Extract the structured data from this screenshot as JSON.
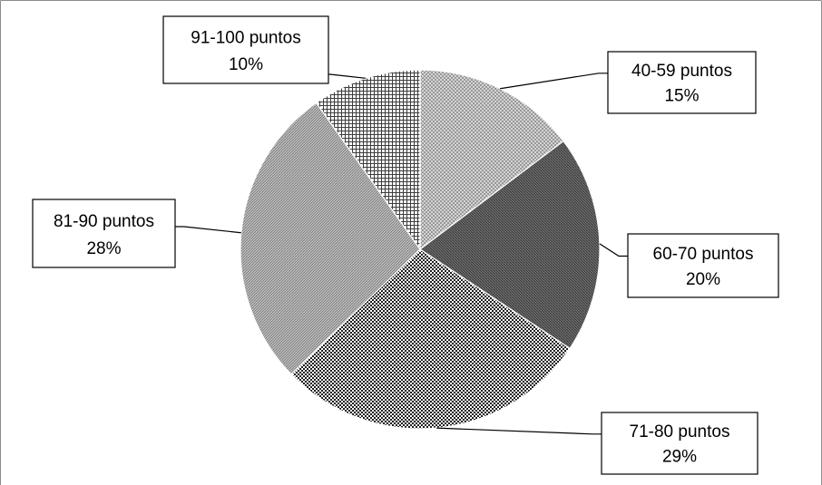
{
  "chart_data": {
    "type": "pie",
    "title": "",
    "legend": "none",
    "slices": [
      {
        "label": "40-59 puntos",
        "value": 15,
        "value_label": "15%",
        "pattern": "crosshatch-light"
      },
      {
        "label": "60-70 puntos",
        "value": 20,
        "value_label": "20%",
        "pattern": "lines-dark"
      },
      {
        "label": "71-80 puntos",
        "value": 29,
        "value_label": "29%",
        "pattern": "checker"
      },
      {
        "label": "81-90 puntos",
        "value": 28,
        "value_label": "28%",
        "pattern": "lines-light"
      },
      {
        "label": "91-100 puntos",
        "value": 10,
        "value_label": "10%",
        "pattern": "grid"
      }
    ]
  }
}
